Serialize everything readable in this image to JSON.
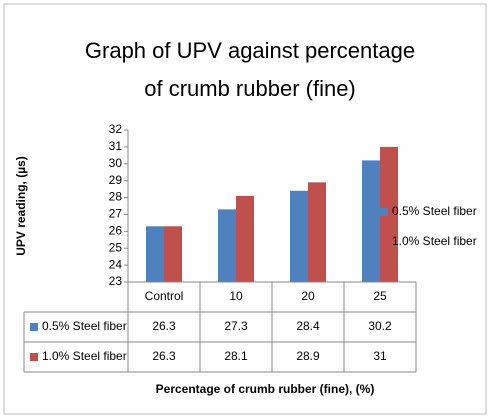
{
  "chart_data": {
    "type": "bar",
    "title": "Graph of UPV against percentage of crumb rubber (fine)",
    "y_label": "UPV reading, (µs)",
    "x_label": "Percentage of crumb rubber (fine), (%)",
    "categories": [
      "Control",
      "10",
      "20",
      "25"
    ],
    "series": [
      {
        "name": "0.5% Steel fiber",
        "color": "#4f81bd",
        "values": [
          26.3,
          27.3,
          28.4,
          30.2
        ]
      },
      {
        "name": "1.0% Steel fiber",
        "color": "#c0504d",
        "values": [
          26.3,
          28.1,
          28.9,
          31
        ]
      }
    ],
    "ylim": [
      23,
      32
    ],
    "yticks": [
      23,
      24,
      25,
      26,
      27,
      28,
      29,
      30,
      31,
      32
    ],
    "legend": "right",
    "data_table": true
  }
}
